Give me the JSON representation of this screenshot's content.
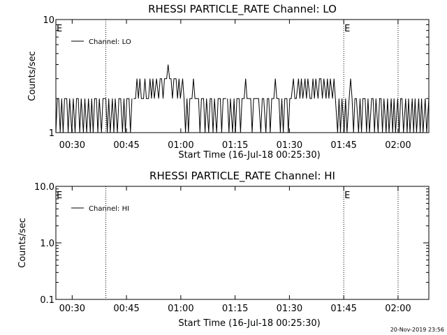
{
  "footer": {
    "timestamp": "20-Nov-2019 23:56"
  },
  "chart_data": [
    {
      "type": "line",
      "title": "RHESSI PARTICLE_RATE Channel: LO",
      "xlabel": "Start Time (16-Jul-18 00:25:30)",
      "ylabel": "Counts/sec",
      "x_unit": "minutes since 00:25:30",
      "xlim": [
        0,
        103
      ],
      "ylim": [
        1,
        10
      ],
      "yscale": "log",
      "x_tick_labels": [
        "00:30",
        "00:45",
        "01:00",
        "01:15",
        "01:30",
        "01:45",
        "02:00"
      ],
      "x_tick_values": [
        4.5,
        19.5,
        34.5,
        49.5,
        64.5,
        79.5,
        94.5
      ],
      "y_tick_labels": [
        "1",
        "10"
      ],
      "y_tick_values": [
        1,
        10
      ],
      "legend": {
        "position": "top-left",
        "entries": [
          "Channel: LO"
        ]
      },
      "annotations": [
        {
          "text": "E",
          "x": 0
        },
        {
          "text": "E",
          "x": 79.5
        }
      ],
      "vlines_dotted": [
        13.8,
        79.5,
        94.5
      ],
      "series": [
        {
          "name": "Channel: LO",
          "segments": [
            [
              [
                0,
                1
              ],
              [
                0.4,
                2
              ],
              [
                0.8,
                2
              ],
              [
                1.2,
                1
              ],
              [
                1.6,
                2
              ],
              [
                2,
                1
              ],
              [
                2.4,
                2
              ],
              [
                3,
                2
              ],
              [
                3.4,
                1
              ],
              [
                3.8,
                2
              ],
              [
                4.4,
                1
              ],
              [
                4.8,
                2
              ],
              [
                5.3,
                1
              ],
              [
                5.7,
                2
              ],
              [
                6.2,
                2
              ],
              [
                6.6,
                1
              ],
              [
                7,
                2
              ],
              [
                7.6,
                1
              ],
              [
                8,
                2
              ],
              [
                8.5,
                1
              ],
              [
                9,
                2
              ],
              [
                9.5,
                1
              ],
              [
                9.9,
                2
              ],
              [
                10.3,
                1
              ],
              [
                10.7,
                2
              ],
              [
                11.2,
                2
              ],
              [
                11.6,
                1
              ],
              [
                12,
                2
              ],
              [
                12.6,
                1
              ],
              [
                13,
                2
              ],
              [
                13.8,
                2
              ],
              [
                14.2,
                1
              ],
              [
                14.6,
                2
              ],
              [
                15,
                1
              ],
              [
                15.6,
                2
              ],
              [
                16,
                1
              ],
              [
                16.4,
                2
              ],
              [
                17,
                1
              ],
              [
                17.4,
                2
              ],
              [
                17.9,
                2
              ],
              [
                18.4,
                1
              ],
              [
                18.8,
                2
              ],
              [
                19.2,
                1
              ],
              [
                19.6,
                2
              ],
              [
                20.2,
                2
              ],
              [
                20.6,
                1
              ],
              [
                21,
                2
              ]
            ],
            [
              [
                21.5,
                2
              ],
              [
                22,
                2
              ],
              [
                22.4,
                3
              ],
              [
                22.8,
                2
              ],
              [
                23.2,
                3
              ],
              [
                23.6,
                2
              ],
              [
                24.2,
                2
              ],
              [
                24.6,
                3
              ],
              [
                25,
                2
              ],
              [
                25.6,
                2
              ],
              [
                26,
                3
              ],
              [
                26.4,
                2
              ],
              [
                26.8,
                3
              ],
              [
                27.2,
                2
              ],
              [
                27.8,
                3
              ],
              [
                28.4,
                2
              ],
              [
                28.8,
                3
              ],
              [
                29.2,
                3
              ],
              [
                29.6,
                2
              ],
              [
                30,
                3
              ],
              [
                30.6,
                3
              ],
              [
                31,
                4
              ],
              [
                31.4,
                3
              ],
              [
                31.8,
                3
              ],
              [
                32.2,
                2
              ],
              [
                32.6,
                3
              ],
              [
                33.2,
                3
              ],
              [
                33.6,
                2
              ],
              [
                34,
                3
              ],
              [
                34.4,
                2
              ],
              [
                35,
                3
              ],
              [
                35.4,
                2
              ],
              [
                35.8,
                1
              ],
              [
                36.2,
                2
              ],
              [
                36.6,
                1
              ],
              [
                37,
                2
              ],
              [
                37.6,
                2
              ],
              [
                38,
                3
              ],
              [
                38.4,
                2
              ],
              [
                39,
                2
              ],
              [
                39.4,
                2
              ],
              [
                39.8,
                1
              ],
              [
                40.2,
                2
              ],
              [
                40.8,
                2
              ],
              [
                41.2,
                1
              ],
              [
                41.6,
                2
              ],
              [
                42.2,
                1
              ],
              [
                42.6,
                2
              ],
              [
                43,
                2
              ],
              [
                43.4,
                1
              ],
              [
                43.8,
                2
              ],
              [
                44.4,
                1
              ],
              [
                44.8,
                2
              ],
              [
                45.4,
                2
              ],
              [
                45.8,
                1
              ],
              [
                46.2,
                2
              ],
              [
                46.6,
                2
              ],
              [
                47,
                2
              ]
            ],
            [
              [
                47.4,
                2
              ],
              [
                47.8,
                1
              ],
              [
                48.2,
                2
              ],
              [
                48.8,
                1
              ],
              [
                49.2,
                2
              ],
              [
                49.6,
                1
              ],
              [
                50,
                2
              ],
              [
                50.6,
                2
              ],
              [
                51,
                1
              ],
              [
                51.4,
                2
              ],
              [
                52,
                2
              ],
              [
                52.4,
                3
              ],
              [
                52.8,
                2
              ],
              [
                53.2,
                2
              ],
              [
                53.8,
                2
              ],
              [
                54.2,
                1
              ],
              [
                54.6,
                2
              ],
              [
                55,
                2
              ],
              [
                55.6,
                2
              ],
              [
                56,
                2
              ],
              [
                56.6,
                1
              ],
              [
                57,
                2
              ],
              [
                57.4,
                2
              ],
              [
                58,
                1
              ],
              [
                58.4,
                2
              ],
              [
                58.8,
                2
              ],
              [
                59.2,
                1
              ],
              [
                59.6,
                2
              ],
              [
                60.2,
                2
              ],
              [
                60.6,
                3
              ],
              [
                61,
                2
              ],
              [
                61.6,
                2
              ],
              [
                62,
                1
              ],
              [
                62.4,
                2
              ],
              [
                62.8,
                1
              ],
              [
                63.2,
                2
              ],
              [
                63.8,
                2
              ],
              [
                64.2,
                1
              ],
              [
                64.6,
                2
              ],
              [
                65,
                2
              ],
              [
                65.6,
                3
              ],
              [
                66,
                2
              ],
              [
                66.4,
                2
              ],
              [
                67,
                3
              ],
              [
                67.4,
                2
              ],
              [
                67.8,
                3
              ],
              [
                68.2,
                2
              ],
              [
                68.8,
                3
              ],
              [
                69.2,
                2
              ],
              [
                69.6,
                3
              ],
              [
                70.2,
                2
              ],
              [
                70.6,
                2
              ],
              [
                71,
                3
              ],
              [
                71.4,
                2
              ],
              [
                71.8,
                3
              ],
              [
                72.4,
                2
              ],
              [
                72.8,
                3
              ],
              [
                73.2,
                3
              ],
              [
                73.6,
                2
              ],
              [
                74,
                3
              ],
              [
                74.6,
                2
              ],
              [
                75,
                3
              ],
              [
                75.4,
                2
              ],
              [
                75.8,
                3
              ],
              [
                76.4,
                2
              ],
              [
                76.8,
                3
              ],
              [
                77.2,
                2
              ],
              [
                77.8,
                1
              ],
              [
                78.2,
                2
              ],
              [
                78.6,
                1
              ],
              [
                79,
                2
              ],
              [
                79.6,
                1
              ],
              [
                80,
                2
              ],
              [
                80.4,
                1
              ],
              [
                81,
                2
              ],
              [
                81.4,
                3
              ],
              [
                81.8,
                2
              ],
              [
                82.2,
                1
              ],
              [
                82.6,
                2
              ],
              [
                83,
                2
              ],
              [
                83.6,
                1
              ],
              [
                84,
                2
              ],
              [
                84.4,
                1
              ],
              [
                84.8,
                2
              ],
              [
                85.4,
                2
              ],
              [
                85.8,
                1
              ],
              [
                86.2,
                2
              ],
              [
                86.6,
                1
              ],
              [
                87.2,
                2
              ],
              [
                87.6,
                2
              ],
              [
                88,
                1
              ],
              [
                88.4,
                2
              ],
              [
                89,
                1
              ],
              [
                89.4,
                2
              ],
              [
                89.8,
                2
              ],
              [
                90.2,
                1
              ],
              [
                90.6,
                2
              ],
              [
                91.2,
                1
              ],
              [
                91.6,
                2
              ],
              [
                92,
                1
              ],
              [
                92.6,
                2
              ],
              [
                93,
                1
              ],
              [
                93.4,
                2
              ],
              [
                93.8,
                1
              ],
              [
                94.4,
                2
              ],
              [
                94.8,
                1
              ],
              [
                95.2,
                2
              ],
              [
                95.6,
                2
              ],
              [
                96,
                1
              ],
              [
                96.6,
                2
              ],
              [
                97,
                1
              ],
              [
                97.4,
                2
              ],
              [
                97.8,
                1
              ],
              [
                98.4,
                2
              ],
              [
                98.8,
                1
              ],
              [
                99.2,
                2
              ],
              [
                99.6,
                1
              ],
              [
                100.2,
                2
              ],
              [
                100.6,
                1
              ],
              [
                101,
                2
              ],
              [
                101.4,
                1
              ],
              [
                102,
                2
              ],
              [
                102.4,
                1
              ],
              [
                103,
                2
              ]
            ]
          ]
        }
      ]
    },
    {
      "type": "line",
      "title": "RHESSI PARTICLE_RATE Channel: HI",
      "xlabel": "Start Time (16-Jul-18 00:25:30)",
      "ylabel": "Counts/sec",
      "x_unit": "minutes since 00:25:30",
      "xlim": [
        0,
        103
      ],
      "ylim": [
        0.1,
        10
      ],
      "yscale": "log",
      "x_tick_labels": [
        "00:30",
        "00:45",
        "01:00",
        "01:15",
        "01:30",
        "01:45",
        "02:00"
      ],
      "x_tick_values": [
        4.5,
        19.5,
        34.5,
        49.5,
        64.5,
        79.5,
        94.5
      ],
      "y_tick_labels": [
        "0.1",
        "1.0",
        "10.0"
      ],
      "y_tick_values": [
        0.1,
        1,
        10
      ],
      "legend": {
        "position": "top-left",
        "entries": [
          "Channel: HI"
        ]
      },
      "annotations": [
        {
          "text": "E",
          "x": 0
        },
        {
          "text": "E",
          "x": 79.5
        }
      ],
      "vlines_dotted": [
        13.8,
        79.5,
        94.5
      ],
      "series": [
        {
          "name": "Channel: HI",
          "segments": []
        }
      ]
    }
  ]
}
